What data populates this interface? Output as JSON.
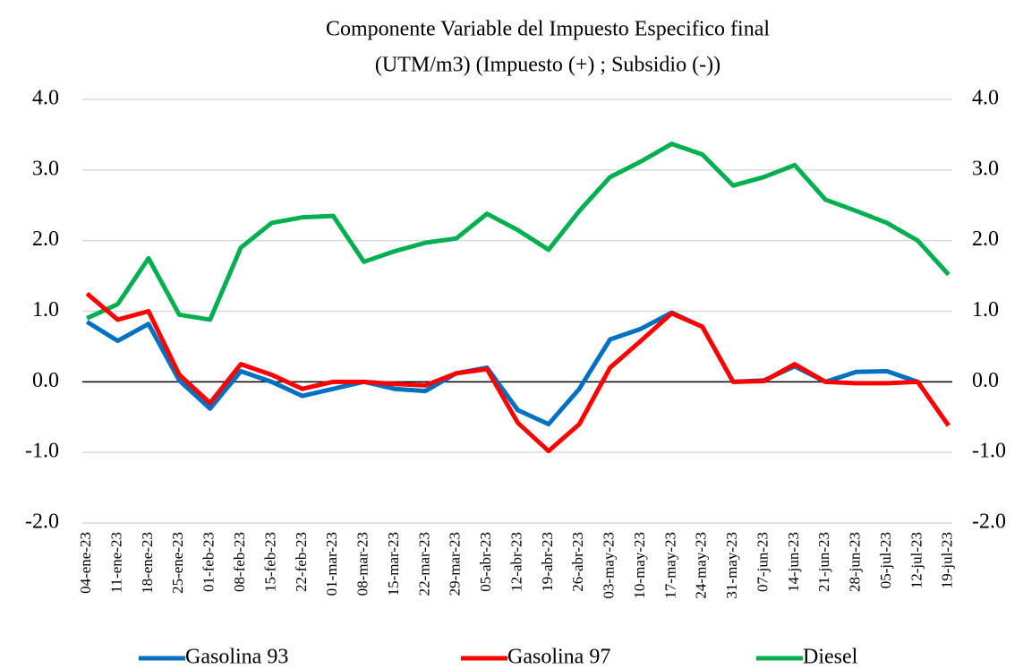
{
  "chart_data": {
    "type": "line",
    "title": [
      "Componente Variable del Impuesto Especifico final",
      "(UTM/m3) (Impuesto (+) ; Subsidio (-))"
    ],
    "categories": [
      "04-ene-23",
      "11-ene-23",
      "18-ene-23",
      "25-ene-23",
      "01-feb-23",
      "08-feb-23",
      "15-feb-23",
      "22-feb-23",
      "01-mar-23",
      "08-mar-23",
      "15-mar-23",
      "22-mar-23",
      "29-mar-23",
      "05-abr-23",
      "12-abr-23",
      "19-abr-23",
      "26-abr-23",
      "03-may-23",
      "10-may-23",
      "17-may-23",
      "24-may-23",
      "31-may-23",
      "07-jun-23",
      "14-jun-23",
      "21-jun-23",
      "28-jun-23",
      "05-jul-23",
      "12-jul-23",
      "19-jul-23"
    ],
    "series": [
      {
        "name": "Gasolina 93",
        "color": "#0070c0",
        "values": [
          0.85,
          0.58,
          0.82,
          0.02,
          -0.38,
          0.15,
          0.0,
          -0.2,
          -0.1,
          0.0,
          -0.1,
          -0.13,
          0.12,
          0.2,
          -0.4,
          -0.6,
          -0.1,
          0.6,
          0.75,
          0.98,
          0.78,
          0.0,
          0.02,
          0.22,
          0.0,
          0.14,
          0.15,
          0.0,
          -0.62
        ]
      },
      {
        "name": "Gasolina 97",
        "color": "#ff0000",
        "values": [
          1.25,
          0.88,
          1.0,
          0.1,
          -0.3,
          0.25,
          0.1,
          -0.1,
          0.0,
          0.0,
          -0.03,
          -0.05,
          0.12,
          0.18,
          -0.58,
          -0.98,
          -0.6,
          0.2,
          0.58,
          0.97,
          0.78,
          0.0,
          0.01,
          0.25,
          0.0,
          -0.02,
          -0.02,
          0.0,
          -0.62
        ]
      },
      {
        "name": "Diesel",
        "color": "#00b050",
        "values": [
          0.9,
          1.1,
          1.75,
          0.95,
          0.88,
          1.9,
          2.25,
          2.33,
          2.35,
          1.7,
          1.85,
          1.97,
          2.03,
          2.38,
          2.15,
          1.87,
          2.42,
          2.9,
          3.12,
          3.37,
          3.22,
          2.78,
          2.9,
          3.07,
          2.58,
          2.42,
          2.25,
          2.0,
          1.52
        ]
      }
    ],
    "ylim": [
      -2,
      4
    ],
    "yticks": [
      {
        "value": -2,
        "label": "-2.0"
      },
      {
        "value": -1,
        "label": "-1.0"
      },
      {
        "value": 0,
        "label": "0.0"
      },
      {
        "value": 1,
        "label": "1.0"
      },
      {
        "value": 2,
        "label": "2.0"
      },
      {
        "value": 3,
        "label": "3.0"
      },
      {
        "value": 4,
        "label": "4.0"
      }
    ],
    "y2lim": [
      -2,
      4
    ],
    "y2ticks": [
      {
        "value": -2,
        "label": "-2.0"
      },
      {
        "value": -1,
        "label": "-1.0"
      },
      {
        "value": 0,
        "label": "0.0"
      },
      {
        "value": 1,
        "label": "1.0"
      },
      {
        "value": 2,
        "label": "2.0"
      },
      {
        "value": 3,
        "label": "3.0"
      },
      {
        "value": 4,
        "label": "4.0"
      }
    ],
    "grid": true,
    "legend": "bottom"
  }
}
